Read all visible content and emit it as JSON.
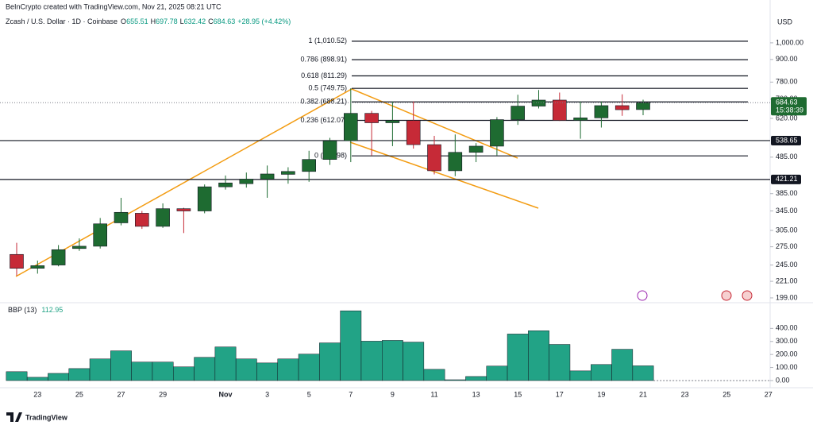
{
  "header": {
    "attribution": "BeInCrypto created with TradingView.com, Nov 21, 2025 08:21 UTC",
    "currency": "USD",
    "countdown": "15:38:39",
    "ohlc_letters": [
      "O",
      "H",
      "L",
      "C"
    ],
    "change": "+28.95 (+4.42%)",
    "logo": "TradingView"
  },
  "chart_data": [
    {
      "type": "candlestick",
      "title": "Zcash / U.S. Dollar · 1D · Coinbase",
      "log_scale": true,
      "grid": false,
      "categories": [
        null,
        "23",
        null,
        "25",
        null,
        "27",
        null,
        "29",
        null,
        null,
        "Nov",
        null,
        "3",
        null,
        "5",
        null,
        "7",
        null,
        "9",
        null,
        "11",
        null,
        "13",
        null,
        "15",
        null,
        "17",
        null,
        "19",
        null,
        "21",
        null,
        "23",
        null,
        "25",
        null,
        "27"
      ],
      "open": [
        262,
        240,
        245,
        272,
        276,
        320,
        340,
        313,
        350,
        345,
        402,
        410,
        422,
        435,
        443,
        478,
        538,
        640,
        603,
        612,
        525,
        445,
        500,
        520,
        615,
        670,
        696,
        612,
        622,
        672,
        655.51,
        null,
        null,
        null,
        null,
        null,
        null
      ],
      "high": [
        282,
        252,
        278,
        290,
        330,
        375,
        345,
        362,
        352,
        408,
        432,
        440,
        460,
        455,
        505,
        548,
        750,
        650,
        690,
        690,
        555,
        560,
        530,
        625,
        720,
        742,
        730,
        690,
        690,
        722,
        697.78,
        null,
        null,
        null,
        null,
        null,
        null
      ],
      "low": [
        229,
        232,
        243,
        268,
        272,
        315,
        308,
        310,
        300,
        340,
        395,
        400,
        375,
        410,
        415,
        462,
        470,
        490,
        520,
        512,
        435,
        430,
        470,
        490,
        595,
        660,
        610,
        545,
        585,
        630,
        632.42,
        null,
        null,
        null,
        null,
        null,
        null
      ],
      "close": [
        240,
        244,
        270,
        276,
        318,
        342,
        313,
        350,
        345,
        402,
        412,
        422,
        436,
        443,
        478,
        538,
        640,
        603,
        612,
        525,
        445,
        500,
        520,
        615,
        670,
        696,
        612,
        622,
        672,
        655,
        684.63,
        null,
        null,
        null,
        null,
        null,
        null
      ],
      "up_color": "#1e6b31",
      "down_color": "#c62a37",
      "ylim": [
        194,
        1198
      ],
      "yticks": [
        {
          "value": 1000,
          "label": "1,000.00"
        },
        {
          "value": 900,
          "label": "900.00"
        },
        {
          "value": 780,
          "label": "780.00"
        },
        {
          "value": 700,
          "label": "700.00"
        },
        {
          "value": 620,
          "label": "620.00"
        },
        {
          "value": 485,
          "label": "485.00"
        },
        {
          "value": 385,
          "label": "385.00"
        },
        {
          "value": 345,
          "label": "345.00"
        },
        {
          "value": 305,
          "label": "305.00"
        },
        {
          "value": 275,
          "label": "275.00"
        },
        {
          "value": 245,
          "label": "245.00"
        },
        {
          "value": 221,
          "label": "221.00"
        },
        {
          "value": 199,
          "label": "199.00"
        }
      ],
      "price_lines": [
        538.65,
        421.21
      ],
      "fib_levels": [
        {
          "value": 1010.52,
          "label": "1 (1,010.52)"
        },
        {
          "value": 898.91,
          "label": "0.786 (898.91)"
        },
        {
          "value": 811.29,
          "label": "0.618 (811.29)"
        },
        {
          "value": 749.75,
          "label": "0.5 (749.75)"
        },
        {
          "value": 688.21,
          "label": "0.382 (688.21)"
        },
        {
          "value": 612.07,
          "label": "0.236 (612.07)"
        },
        {
          "value": 488.98,
          "label": "0 (488.98)"
        }
      ]
    },
    {
      "type": "bar",
      "title": "BBP (13)",
      "color": "#22a386",
      "values": [
        68,
        25,
        55,
        92,
        166,
        228,
        142,
        142,
        105,
        178,
        258,
        166,
        135,
        166,
        203,
        289,
        535,
        302,
        308,
        295,
        86,
        6,
        31,
        111,
        357,
        382,
        277,
        74,
        123,
        240,
        112.95,
        null,
        null,
        null,
        null,
        null,
        null
      ],
      "ylim": [
        -55,
        585
      ],
      "yticks": [
        {
          "value": 400,
          "label": "400.00"
        },
        {
          "value": 300,
          "label": "300.00"
        },
        {
          "value": 200,
          "label": "200.00"
        },
        {
          "value": 100,
          "label": "100.00"
        },
        {
          "value": 0,
          "label": "0.00"
        }
      ]
    }
  ]
}
